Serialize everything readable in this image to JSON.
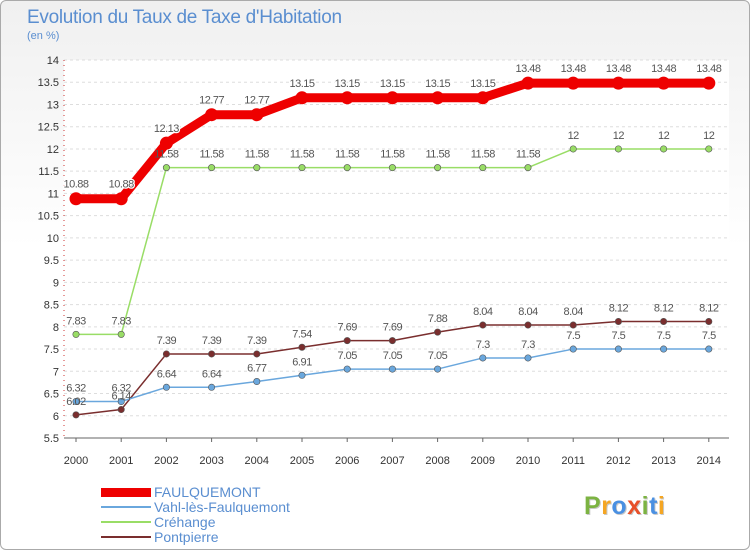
{
  "title": "Evolution du Taux de Taxe d'Habitation",
  "unit": "(en %)",
  "logo": {
    "letters": [
      {
        "ch": "P",
        "color": "#7cb342"
      },
      {
        "ch": "r",
        "color": "#f5a623"
      },
      {
        "ch": "o",
        "color": "#4a90e2"
      },
      {
        "ch": "x",
        "color": "#e8502a"
      },
      {
        "ch": "i",
        "color": "#7cb342"
      },
      {
        "ch": "t",
        "color": "#4a90e2"
      },
      {
        "ch": "i",
        "color": "#f5a623"
      }
    ]
  },
  "chart_data": {
    "type": "line",
    "categories": [
      "2000",
      "2001",
      "2002",
      "2003",
      "2004",
      "2005",
      "2006",
      "2007",
      "2008",
      "2009",
      "2010",
      "2011",
      "2012",
      "2013",
      "2014"
    ],
    "ylim": [
      5.5,
      14
    ],
    "yticks": [
      5.5,
      6,
      6.5,
      7,
      7.5,
      8,
      8.5,
      9,
      9.5,
      10,
      10.5,
      11,
      11.5,
      12,
      12.5,
      13,
      13.5,
      14
    ],
    "grid": true,
    "legend_position": "bottom-left",
    "series": [
      {
        "name": "FAULQUEMONT",
        "color": "#ee0000",
        "labelColor": "#ffffff",
        "values": [
          10.88,
          10.88,
          12.13,
          12.77,
          12.77,
          13.15,
          13.15,
          13.15,
          13.15,
          13.15,
          13.48,
          13.48,
          13.48,
          13.48,
          13.48
        ],
        "labels": [
          "10.88",
          "10.88",
          "12.13",
          "12.77",
          "12.77",
          "13.15",
          "13.15",
          "13.15",
          "13.15",
          "13.15",
          "13.48",
          "13.48",
          "13.48",
          "13.48",
          "13.48"
        ]
      },
      {
        "name": "Vahl-lès-Faulquemont",
        "color": "#6aa7dd",
        "labelColor": "#555555",
        "values": [
          6.32,
          6.32,
          6.64,
          6.64,
          6.77,
          6.91,
          7.05,
          7.05,
          7.05,
          7.3,
          7.3,
          7.5,
          7.5,
          7.5,
          7.5
        ],
        "labels": [
          "6.32",
          "6.32",
          "6.64",
          "6.64",
          "6.77",
          "6.91",
          "7.05",
          "7.05",
          "7.05",
          "7.3",
          "7.3",
          "7.5",
          "7.5",
          "7.5",
          "7.5"
        ]
      },
      {
        "name": "Créhange",
        "color": "#99dd66",
        "labelColor": "#555555",
        "values": [
          7.83,
          7.83,
          11.58,
          11.58,
          11.58,
          11.58,
          11.58,
          11.58,
          11.58,
          11.58,
          11.58,
          12,
          12,
          12,
          12
        ],
        "labels": [
          "7.83",
          "7.83",
          "11.58",
          "11.58",
          "11.58",
          "11.58",
          "11.58",
          "11.58",
          "11.58",
          "11.58",
          "11.58",
          "12",
          "12",
          "12",
          "12"
        ]
      },
      {
        "name": "Pontpierre",
        "color": "#7a2e2e",
        "labelColor": "#555555",
        "values": [
          6.02,
          6.14,
          7.39,
          7.39,
          7.39,
          7.54,
          7.69,
          7.69,
          7.88,
          8.04,
          8.04,
          8.04,
          8.12,
          8.12,
          8.12
        ],
        "labels": [
          "6.02",
          "6.14",
          "7.39",
          "7.39",
          "7.39",
          "7.54",
          "7.69",
          "7.69",
          "7.88",
          "8.04",
          "8.04",
          "8.04",
          "8.12",
          "8.12",
          "8.12"
        ]
      }
    ]
  }
}
